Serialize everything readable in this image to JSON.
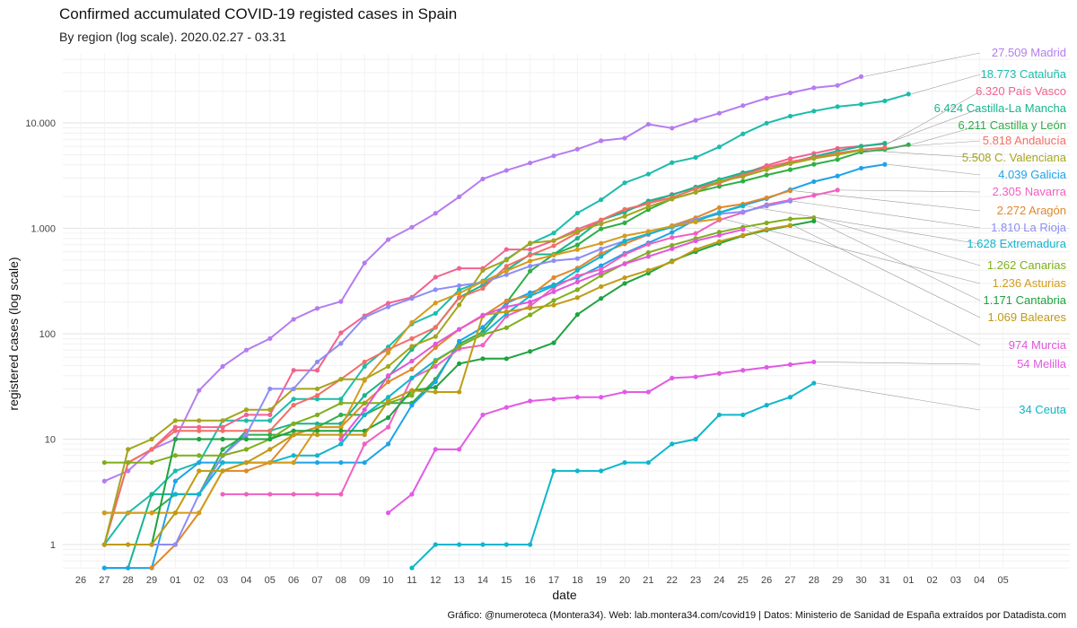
{
  "chart_data": {
    "type": "line",
    "title": "Confirmed accumulated COVID-19 registed cases in Spain",
    "subtitle": "By region (log scale). 2020.02.27 - 03.31",
    "xlabel": "date",
    "ylabel": "registered cases (log scale)",
    "caption": "Gráfico: @numeroteca (Montera34). Web: lab.montera34.com/covid19 | Datos: Ministerio de Sanidad de España extraídos por Datadista.com",
    "x_ticks": [
      "26",
      "27",
      "28",
      "29",
      "01",
      "02",
      "03",
      "04",
      "05",
      "06",
      "07",
      "08",
      "09",
      "10",
      "11",
      "12",
      "13",
      "14",
      "15",
      "16",
      "17",
      "18",
      "19",
      "20",
      "21",
      "22",
      "23",
      "24",
      "25",
      "26",
      "27",
      "28",
      "29",
      "30",
      "31",
      "01",
      "02",
      "03",
      "04",
      "05"
    ],
    "y_scale": "log",
    "y_ticks": [
      1,
      10,
      100,
      1000,
      10000
    ],
    "y_tick_labels": [
      "1",
      "10",
      "100",
      "1.000",
      "10.000"
    ],
    "grid": true,
    "legend": "direct labels at right end",
    "series": [
      {
        "name": "Madrid",
        "color": "#b57cf0",
        "start": 1,
        "values": [
          4,
          5,
          8,
          10,
          29,
          49,
          70,
          90,
          137,
          174,
          202,
          469,
          782,
          1024,
          1388,
          1990,
          2940,
          3544,
          4165,
          4871,
          5637,
          6777,
          7165,
          9702,
          8921,
          10575,
          12352,
          14597,
          17166,
          19243,
          21520,
          22677,
          27509
        ],
        "label": "27.509 Madrid"
      },
      {
        "name": "Cataluña",
        "color": "#1cbcab",
        "start": 1,
        "values": [
          1,
          2,
          3,
          5,
          6,
          15,
          15,
          15,
          24,
          24,
          24,
          49,
          75,
          124,
          156,
          260,
          316,
          509,
          715,
          903,
          1394,
          1866,
          2702,
          3270,
          4203,
          4704,
          5925,
          7864,
          9937,
          11592,
          12940,
          14263,
          15026,
          16157,
          18773
        ],
        "label": "18.773 Cataluña"
      },
      {
        "name": "País Vasco",
        "color": "#f2628e",
        "start": 1,
        "values": [
          1,
          6,
          8,
          13,
          13,
          13,
          17,
          17,
          45,
          45,
          102,
          148,
          195,
          222,
          344,
          417,
          417,
          630,
          630,
          764,
          980,
          1190,
          1465,
          1725,
          2097,
          2421,
          2750,
          3271,
          3946,
          4591,
          5136,
          5740,
          6030,
          6320
        ],
        "label": "6.320 País Vasco"
      },
      {
        "name": "Castilla-La Mancha",
        "color": "#17b58e",
        "start": 1,
        "values": [
          0.6,
          0.6,
          3,
          3,
          3,
          7,
          12,
          12,
          14,
          14,
          14,
          26,
          39,
          71,
          115,
          221,
          289,
          401,
          567,
          567,
          804,
          1199,
          1423,
          1819,
          2078,
          2465,
          2907,
          3373,
          3793,
          4200,
          4800,
          5400,
          6000,
          6424
        ],
        "label": "6.424 Castilla-La Mancha"
      },
      {
        "name": "Castilla y León",
        "color": "#2fae47",
        "start": 1,
        "values": [
          2,
          2,
          2,
          3,
          3,
          8,
          11,
          11,
          11,
          13,
          17,
          17,
          22,
          22,
          37,
          80,
          104,
          197,
          393,
          565,
          696,
          989,
          1128,
          1506,
          1900,
          2201,
          2500,
          2800,
          3200,
          3600,
          4050,
          4500,
          5300,
          5600,
          6211
        ],
        "label": "6.211 Castilla y León"
      },
      {
        "name": "Andalucía",
        "color": "#f26f66",
        "start": 1,
        "values": [
          1,
          6,
          8,
          12,
          12,
          12,
          12,
          12,
          21,
          26,
          37,
          54,
          71,
          90,
          115,
          219,
          269,
          437,
          557,
          683,
          907,
          1200,
          1515,
          1725,
          1961,
          2370,
          2683,
          3210,
          3793,
          4291,
          4682,
          5168,
          5567,
          5818
        ],
        "label": "5.818 Andalucía"
      },
      {
        "name": "C. Valenciana",
        "color": "#a3a51c",
        "start": 1,
        "values": [
          1,
          8,
          10,
          15,
          15,
          15,
          19,
          19,
          30,
          30,
          37,
          37,
          49,
          76,
          94,
          188,
          399,
          500,
          725,
          765,
          940,
          1100,
          1300,
          1604,
          1900,
          2200,
          2800,
          3100,
          3600,
          4100,
          4600,
          5000,
          5508
        ],
        "label": "5.508 C. Valenciana"
      },
      {
        "name": "Galicia",
        "color": "#1da3e8",
        "start": 1,
        "values": [
          0.6,
          0.6,
          0.6,
          4,
          6,
          6,
          6,
          6,
          6,
          6,
          6,
          6,
          9,
          21,
          35,
          85,
          115,
          195,
          245,
          292,
          341,
          442,
          580,
          727,
          915,
          1208,
          1415,
          1653,
          1913,
          2322,
          2772,
          3139,
          3723,
          4039
        ],
        "label": "4.039 Galicia"
      },
      {
        "name": "Navarra",
        "color": "#f060c0",
        "start": 6,
        "values": [
          3,
          3,
          3,
          3,
          3,
          3,
          9,
          13,
          38,
          49,
          72,
          78,
          147,
          183,
          275,
          355,
          408,
          564,
          705,
          818,
          894,
          1197,
          1411,
          1678,
          1860,
          2051,
          2305
        ],
        "label": "2.305 Navarra"
      },
      {
        "name": "Aragón",
        "color": "#e0882a",
        "start": 3,
        "values": [
          0.6,
          1,
          2,
          5,
          5,
          6,
          11,
          13,
          13,
          22,
          35,
          46,
          74,
          110,
          147,
          205,
          230,
          341,
          420,
          578,
          713,
          873,
          1060,
          1260,
          1573,
          1700,
          1950,
          2272
        ],
        "label": "2.272 Aragón"
      },
      {
        "name": "La Rioja",
        "color": "#8d8df5",
        "start": 3,
        "values": [
          1,
          1,
          3,
          7,
          11,
          30,
          30,
          54,
          81,
          143,
          180,
          216,
          262,
          286,
          307,
          363,
          438,
          493,
          517,
          638,
          758,
          874,
          1055,
          1200,
          1370,
          1436,
          1629,
          1810
        ],
        "label": "1.810 La Rioja"
      },
      {
        "name": "Extremadura",
        "color": "#11b5cf",
        "start": 4,
        "values": [
          3,
          3,
          6,
          6,
          6,
          7,
          7,
          9,
          17,
          25,
          38,
          56,
          76,
          99,
          155,
          228,
          284,
          400,
          540,
          760,
          888,
          1023,
          1160,
          1410,
          1628
        ],
        "label": "1.628 Extremadura"
      },
      {
        "name": "Canarias",
        "color": "#7fae1a",
        "start": 1,
        "values": [
          6,
          6,
          6,
          7,
          7,
          7,
          8,
          10,
          14,
          17,
          22,
          22,
          22,
          26,
          55,
          76,
          98,
          114,
          151,
          207,
          262,
          356,
          464,
          590,
          690,
          800,
          920,
          1025,
          1125,
          1225,
          1262
        ],
        "label": "1.262 Canarias"
      },
      {
        "name": "Asturias",
        "color": "#d49b1c",
        "start": 1,
        "values": [
          2,
          2,
          2,
          2,
          2,
          5,
          6,
          6,
          6,
          13,
          13,
          36,
          66,
          128,
          196,
          242,
          312,
          395,
          490,
          557,
          629,
          721,
          848,
          935,
          1050,
          1150,
          1236
        ],
        "label": "1.236 Asturias"
      },
      {
        "name": "Cantabria",
        "color": "#1ea33f",
        "start": 3,
        "values": [
          1,
          10,
          10,
          10,
          10,
          10,
          12,
          12,
          12,
          12,
          16,
          29,
          31,
          52,
          58,
          58,
          68,
          82,
          152,
          216,
          300,
          376,
          491,
          600,
          720,
          850,
          960,
          1060,
          1171
        ],
        "label": "1.171 Cantabria"
      },
      {
        "name": "Baleares",
        "color": "#bf9b14",
        "start": 1,
        "values": [
          1,
          1,
          1,
          2,
          5,
          5,
          6,
          8,
          11,
          11,
          11,
          11,
          23,
          29,
          28,
          28,
          150,
          162,
          175,
          187,
          220,
          280,
          340,
          400,
          480,
          630,
          750,
          860,
          980,
          1069
        ],
        "label": "1.069 Baleares"
      },
      {
        "name": "Murcia",
        "color": "#e356d9",
        "start": 11,
        "values": [
          10,
          19,
          40,
          55,
          80,
          110,
          150,
          180,
          200,
          250,
          310,
          380,
          460,
          540,
          640,
          760,
          860,
          974
        ],
        "label": "974 Murcia"
      },
      {
        "name": "Melilla",
        "color": "#e25ae5",
        "start": 13,
        "values": [
          2,
          3,
          8,
          8,
          17,
          20,
          23,
          24,
          25,
          25,
          28,
          28,
          38,
          39,
          42,
          45,
          48,
          51,
          54
        ],
        "label": "54 Melilla"
      },
      {
        "name": "Ceuta",
        "color": "#0fb6cc",
        "start": 14,
        "values": [
          0.6,
          1,
          1,
          1,
          1,
          1,
          5,
          5,
          5,
          6,
          6,
          9,
          10,
          17,
          17,
          21,
          25,
          34
        ],
        "label": "34 Ceuta"
      }
    ]
  }
}
